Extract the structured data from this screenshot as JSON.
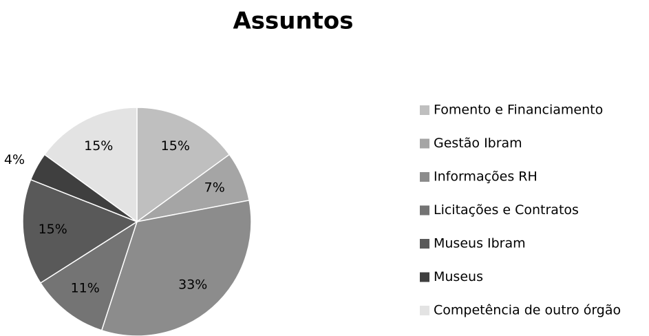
{
  "chart_data": {
    "type": "pie",
    "title": "Assuntos",
    "categories": [
      "Fomento e Financiamento",
      "Gestão Ibram",
      "Informações RH",
      "Licitações e Contratos",
      "Museus Ibram",
      "Museus",
      "Competência de outro órgão"
    ],
    "values": [
      15,
      7,
      33,
      11,
      15,
      4,
      15
    ],
    "value_labels": [
      "15%",
      "7%",
      "33%",
      "11%",
      "15%",
      "4%",
      "15%"
    ],
    "colors": [
      "#bfbfbf",
      "#a5a5a5",
      "#8c8c8c",
      "#747474",
      "#595959",
      "#3f3f3f",
      "#e3e3e3"
    ],
    "legend": "right"
  }
}
